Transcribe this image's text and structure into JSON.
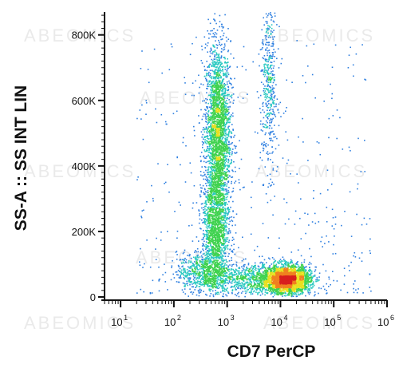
{
  "chart_data": {
    "type": "scatter",
    "title": "",
    "xlabel": "CD7 PerCP",
    "ylabel": "SS-A :: SS INT LIN",
    "x_scale": "log",
    "xlim": [
      5,
      1000000
    ],
    "ylim": [
      0,
      870000
    ],
    "y_ticks": [
      {
        "value": 0,
        "label": "0"
      },
      {
        "value": 200000,
        "label": "200K"
      },
      {
        "value": 400000,
        "label": "400K"
      },
      {
        "value": 600000,
        "label": "600K"
      },
      {
        "value": 800000,
        "label": "800K"
      }
    ],
    "x_ticks": [
      {
        "value": 10,
        "base": "10",
        "exp": "1"
      },
      {
        "value": 100,
        "base": "10",
        "exp": "2"
      },
      {
        "value": 1000,
        "base": "10",
        "exp": "3"
      },
      {
        "value": 10000,
        "base": "10",
        "exp": "4"
      },
      {
        "value": 100000,
        "base": "10",
        "exp": "5"
      },
      {
        "value": 1000000,
        "base": "10",
        "exp": "6"
      }
    ],
    "grid": false,
    "legend": "none",
    "density_colormap": [
      "#1a1aa8",
      "#2e7fe0",
      "#28c8c0",
      "#3fd24f",
      "#e8e020",
      "#f08020",
      "#d81e1e"
    ],
    "populations": [
      {
        "x_center": 650,
        "y_center": 500000,
        "x_spread_decades": 0.12,
        "y_spread": 140000,
        "events": 2600
      },
      {
        "x_center": 600,
        "y_center": 200000,
        "x_spread_decades": 0.13,
        "y_spread": 90000,
        "events": 1400
      },
      {
        "x_center": 13000,
        "y_center": 55000,
        "x_spread_decades": 0.22,
        "y_spread": 22000,
        "events": 2600
      },
      {
        "x_center": 3000,
        "y_center": 55000,
        "x_spread_decades": 0.35,
        "y_spread": 25000,
        "events": 700
      },
      {
        "x_center": 350,
        "y_center": 75000,
        "x_spread_decades": 0.25,
        "y_spread": 30000,
        "events": 700
      },
      {
        "x_center": 6000,
        "y_center": 650000,
        "x_spread_decades": 0.08,
        "y_spread": 130000,
        "events": 450
      }
    ],
    "watermark": "ABEOMICS"
  }
}
